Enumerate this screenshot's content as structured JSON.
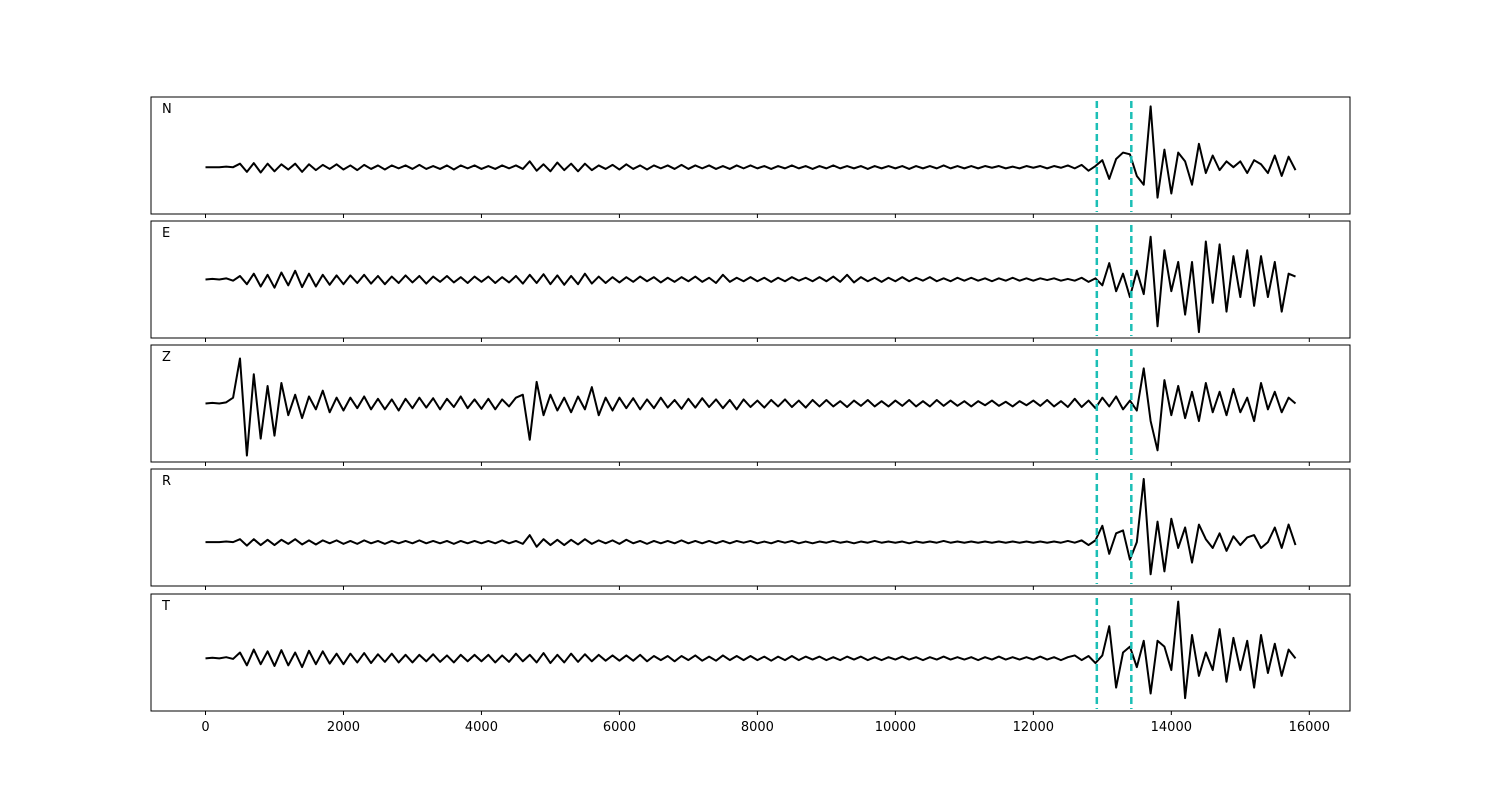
{
  "chart_data": {
    "type": "line",
    "layout": "stacked",
    "line_color": "#000000",
    "vlines": [
      12920,
      13420
    ],
    "vline_color": "#1cbfb6",
    "vline_style": "dashed",
    "xlim": [
      -790,
      16590
    ],
    "xticks": [
      0,
      2000,
      4000,
      6000,
      8000,
      10000,
      12000,
      14000,
      16000
    ],
    "x": [
      0,
      100,
      200,
      300,
      400,
      500,
      600,
      700,
      800,
      900,
      1000,
      1100,
      1200,
      1300,
      1400,
      1500,
      1600,
      1700,
      1800,
      1900,
      2000,
      2100,
      2200,
      2300,
      2400,
      2500,
      2600,
      2700,
      2800,
      2900,
      3000,
      3100,
      3200,
      3300,
      3400,
      3500,
      3600,
      3700,
      3800,
      3900,
      4000,
      4100,
      4200,
      4300,
      4400,
      4500,
      4600,
      4700,
      4800,
      4900,
      5000,
      5100,
      5200,
      5300,
      5400,
      5500,
      5600,
      5700,
      5800,
      5900,
      6000,
      6100,
      6200,
      6300,
      6400,
      6500,
      6600,
      6700,
      6800,
      6900,
      7000,
      7100,
      7200,
      7300,
      7400,
      7500,
      7600,
      7700,
      7800,
      7900,
      8000,
      8100,
      8200,
      8300,
      8400,
      8500,
      8600,
      8700,
      8800,
      8900,
      9000,
      9100,
      9200,
      9300,
      9400,
      9500,
      9600,
      9700,
      9800,
      9900,
      10000,
      10100,
      10200,
      10300,
      10400,
      10500,
      10600,
      10700,
      10800,
      10900,
      11000,
      11100,
      11200,
      11300,
      11400,
      11500,
      11600,
      11700,
      11800,
      11900,
      12000,
      12100,
      12200,
      12300,
      12400,
      12500,
      12600,
      12700,
      12800,
      12900,
      13000,
      13100,
      13200,
      13300,
      13400,
      13500,
      13600,
      13700,
      13800,
      13900,
      14000,
      14100,
      14200,
      14300,
      14400,
      14500,
      14600,
      14700,
      14800,
      14900,
      15000,
      15100,
      15200,
      15300,
      15400,
      15500,
      15600,
      15700,
      15800
    ],
    "series": [
      {
        "name": "N",
        "ylim": [
          -0.8,
          1.2
        ],
        "values": [
          0,
          0,
          0,
          0.01,
          0,
          0.06,
          -0.08,
          0.07,
          -0.09,
          0.06,
          -0.07,
          0.05,
          -0.04,
          0.06,
          -0.08,
          0.05,
          -0.05,
          0.04,
          -0.03,
          0.05,
          -0.04,
          0.03,
          -0.05,
          0.04,
          -0.03,
          0.03,
          -0.04,
          0.03,
          -0.02,
          0.03,
          -0.03,
          0.04,
          -0.03,
          0.02,
          -0.03,
          0.03,
          -0.04,
          0.03,
          -0.02,
          0.03,
          -0.03,
          0.02,
          -0.03,
          0.03,
          -0.02,
          0.03,
          -0.03,
          0.1,
          -0.06,
          0.05,
          -0.07,
          0.08,
          -0.05,
          0.06,
          -0.07,
          0.06,
          -0.05,
          0.03,
          -0.03,
          0.04,
          -0.04,
          0.05,
          -0.03,
          0.03,
          -0.04,
          0.03,
          -0.02,
          0.03,
          -0.03,
          0.04,
          -0.03,
          0.03,
          -0.02,
          0.03,
          -0.03,
          0.02,
          -0.03,
          0.03,
          -0.02,
          0.03,
          -0.02,
          0.02,
          -0.03,
          0.02,
          -0.02,
          0.03,
          -0.02,
          0.02,
          -0.03,
          0.02,
          -0.02,
          0.03,
          -0.02,
          0.02,
          -0.02,
          0.02,
          -0.03,
          0.02,
          -0.02,
          0.02,
          -0.02,
          0.02,
          -0.03,
          0.02,
          -0.02,
          0.02,
          -0.02,
          0.03,
          -0.02,
          0.02,
          -0.02,
          0.02,
          -0.02,
          0.02,
          -0.01,
          0.02,
          -0.02,
          0.01,
          -0.02,
          0.02,
          -0.01,
          0.02,
          -0.02,
          0.02,
          -0.01,
          0.03,
          -0.02,
          0.04,
          -0.06,
          0.02,
          0.12,
          -0.2,
          0.14,
          0.25,
          0.22,
          -0.15,
          -0.3,
          1.04,
          -0.52,
          0.3,
          -0.45,
          0.25,
          0.1,
          -0.3,
          0.4,
          -0.1,
          0.2,
          -0.05,
          0.1,
          0.0,
          0.1,
          -0.1,
          0.12,
          0.05,
          -0.1,
          0.2,
          -0.15,
          0.18,
          -0.05
        ]
      },
      {
        "name": "E",
        "ylim": [
          -1,
          1
        ],
        "values": [
          0,
          0.01,
          0,
          0.02,
          -0.02,
          0.06,
          -0.08,
          0.1,
          -0.12,
          0.08,
          -0.14,
          0.12,
          -0.1,
          0.15,
          -0.13,
          0.1,
          -0.12,
          0.08,
          -0.09,
          0.07,
          -0.08,
          0.07,
          -0.06,
          0.08,
          -0.07,
          0.06,
          -0.08,
          0.05,
          -0.06,
          0.07,
          -0.05,
          0.06,
          -0.07,
          0.05,
          -0.04,
          0.06,
          -0.05,
          0.04,
          -0.06,
          0.05,
          -0.04,
          0.05,
          -0.06,
          0.04,
          -0.05,
          0.06,
          -0.07,
          0.08,
          -0.06,
          0.09,
          -0.08,
          0.07,
          -0.09,
          0.06,
          -0.08,
          0.1,
          -0.07,
          0.05,
          -0.06,
          0.04,
          -0.05,
          0.04,
          -0.04,
          0.05,
          -0.03,
          0.04,
          -0.05,
          0.03,
          -0.04,
          0.04,
          -0.03,
          0.05,
          -0.04,
          0.03,
          -0.06,
          0.08,
          -0.04,
          0.03,
          -0.03,
          0.04,
          -0.03,
          0.03,
          -0.04,
          0.03,
          -0.03,
          0.04,
          -0.02,
          0.03,
          -0.03,
          0.04,
          -0.03,
          0.05,
          -0.04,
          0.08,
          -0.05,
          0.04,
          -0.03,
          0.03,
          -0.04,
          0.03,
          -0.03,
          0.04,
          -0.03,
          0.03,
          -0.02,
          0.04,
          -0.03,
          0.02,
          -0.03,
          0.03,
          -0.02,
          0.03,
          -0.02,
          0.02,
          -0.03,
          0.02,
          -0.02,
          0.03,
          -0.02,
          0.02,
          -0.02,
          0.02,
          -0.01,
          0.02,
          -0.02,
          0.01,
          -0.02,
          0.03,
          -0.04,
          0.02,
          -0.1,
          0.28,
          -0.2,
          0.1,
          -0.3,
          0.15,
          -0.25,
          0.73,
          -0.8,
          0.5,
          -0.2,
          0.3,
          -0.6,
          0.3,
          -0.9,
          0.65,
          -0.4,
          0.6,
          -0.55,
          0.4,
          -0.3,
          0.5,
          -0.45,
          0.4,
          -0.3,
          0.3,
          -0.55,
          0.1,
          0.05
        ]
      },
      {
        "name": "Z",
        "ylim": [
          -1,
          1
        ],
        "values": [
          0,
          0.01,
          0,
          0.02,
          0.1,
          0.77,
          -0.89,
          0.5,
          -0.6,
          0.3,
          -0.55,
          0.35,
          -0.2,
          0.15,
          -0.25,
          0.12,
          -0.1,
          0.22,
          -0.15,
          0.1,
          -0.12,
          0.1,
          -0.08,
          0.12,
          -0.1,
          0.08,
          -0.1,
          0.07,
          -0.12,
          0.08,
          -0.08,
          0.1,
          -0.07,
          0.09,
          -0.1,
          0.08,
          -0.06,
          0.12,
          -0.08,
          0.07,
          -0.09,
          0.08,
          -0.1,
          0.07,
          -0.05,
          0.1,
          0.15,
          -0.62,
          0.37,
          -0.2,
          0.15,
          -0.12,
          0.1,
          -0.15,
          0.12,
          -0.1,
          0.28,
          -0.2,
          0.1,
          -0.12,
          0.1,
          -0.08,
          0.09,
          -0.1,
          0.07,
          -0.08,
          0.1,
          -0.07,
          0.06,
          -0.09,
          0.08,
          -0.07,
          0.09,
          -0.06,
          0.07,
          -0.08,
          0.06,
          -0.1,
          0.07,
          -0.06,
          0.05,
          -0.07,
          0.06,
          -0.05,
          0.07,
          -0.06,
          0.05,
          -0.07,
          0.06,
          -0.05,
          0.06,
          -0.05,
          0.04,
          -0.06,
          0.05,
          -0.04,
          0.06,
          -0.05,
          0.04,
          -0.05,
          0.05,
          -0.04,
          0.06,
          -0.05,
          0.04,
          -0.05,
          0.06,
          -0.04,
          0.05,
          -0.04,
          0.04,
          -0.05,
          0.04,
          -0.03,
          0.05,
          -0.04,
          0.03,
          -0.05,
          0.04,
          -0.03,
          0.05,
          -0.04,
          0.06,
          -0.05,
          0.04,
          -0.06,
          0.08,
          -0.06,
          0.05,
          -0.08,
          0.1,
          -0.05,
          0.12,
          -0.1,
          0.05,
          -0.12,
          0.6,
          -0.3,
          -0.8,
          0.4,
          -0.2,
          0.3,
          -0.25,
          0.2,
          -0.3,
          0.35,
          -0.15,
          0.2,
          -0.2,
          0.25,
          -0.15,
          0.1,
          -0.3,
          0.35,
          -0.1,
          0.2,
          -0.15,
          0.1,
          0.0
        ]
      },
      {
        "name": "R",
        "ylim": [
          -0.75,
          1.25
        ],
        "values": [
          0,
          0,
          0,
          0.01,
          0,
          0.05,
          -0.06,
          0.05,
          -0.05,
          0.04,
          -0.05,
          0.04,
          -0.03,
          0.05,
          -0.04,
          0.03,
          -0.04,
          0.03,
          -0.02,
          0.03,
          -0.03,
          0.02,
          -0.03,
          0.03,
          -0.02,
          0.02,
          -0.03,
          0.02,
          -0.02,
          0.02,
          -0.02,
          0.03,
          -0.02,
          0.02,
          -0.02,
          0.02,
          -0.03,
          0.02,
          -0.02,
          0.02,
          -0.02,
          0.02,
          -0.02,
          0.03,
          -0.02,
          0.02,
          -0.03,
          0.12,
          -0.08,
          0.05,
          -0.05,
          0.04,
          -0.05,
          0.04,
          -0.04,
          0.05,
          -0.03,
          0.03,
          -0.02,
          0.03,
          -0.03,
          0.04,
          -0.02,
          0.02,
          -0.03,
          0.02,
          -0.02,
          0.02,
          -0.02,
          0.03,
          -0.02,
          0.02,
          -0.02,
          0.02,
          -0.02,
          0.02,
          -0.02,
          0.02,
          -0.01,
          0.02,
          -0.02,
          0.01,
          -0.02,
          0.02,
          -0.01,
          0.02,
          -0.02,
          0.01,
          -0.02,
          0.01,
          -0.01,
          0.02,
          -0.01,
          0.01,
          -0.02,
          0.01,
          -0.01,
          0.02,
          -0.01,
          0.01,
          -0.01,
          0.01,
          -0.02,
          0.01,
          -0.01,
          0.01,
          -0.01,
          0.02,
          -0.01,
          0.01,
          -0.01,
          0.01,
          -0.01,
          0.01,
          -0.01,
          0.01,
          -0.01,
          0.01,
          -0.01,
          0.01,
          -0.01,
          0.01,
          -0.01,
          0.01,
          -0.01,
          0.02,
          -0.01,
          0.03,
          -0.05,
          0.03,
          0.28,
          -0.2,
          0.15,
          0.2,
          -0.3,
          0.0,
          1.08,
          -0.55,
          0.35,
          -0.5,
          0.4,
          -0.1,
          0.25,
          -0.35,
          0.3,
          0.05,
          -0.1,
          0.15,
          -0.15,
          0.1,
          -0.05,
          0.08,
          0.12,
          -0.1,
          0.0,
          0.25,
          -0.1,
          0.3,
          -0.05
        ]
      },
      {
        "name": "T",
        "ylim": [
          -0.9,
          1.1
        ],
        "values": [
          0,
          0.01,
          0,
          0.02,
          -0.01,
          0.1,
          -0.12,
          0.15,
          -0.1,
          0.12,
          -0.13,
          0.14,
          -0.12,
          0.1,
          -0.15,
          0.13,
          -0.1,
          0.12,
          -0.09,
          0.08,
          -0.1,
          0.08,
          -0.07,
          0.09,
          -0.08,
          0.07,
          -0.06,
          0.08,
          -0.07,
          0.06,
          -0.07,
          0.06,
          -0.05,
          0.07,
          -0.06,
          0.05,
          -0.07,
          0.06,
          -0.05,
          0.06,
          -0.05,
          0.06,
          -0.07,
          0.05,
          -0.06,
          0.08,
          -0.05,
          0.06,
          -0.07,
          0.09,
          -0.08,
          0.06,
          -0.07,
          0.08,
          -0.06,
          0.07,
          -0.05,
          0.06,
          -0.04,
          0.05,
          -0.04,
          0.05,
          -0.04,
          0.06,
          -0.05,
          0.04,
          -0.03,
          0.04,
          -0.05,
          0.04,
          -0.03,
          0.05,
          -0.04,
          0.03,
          -0.04,
          0.05,
          -0.03,
          0.04,
          -0.03,
          0.04,
          -0.03,
          0.03,
          -0.04,
          0.03,
          -0.03,
          0.04,
          -0.03,
          0.03,
          -0.02,
          0.03,
          -0.03,
          0.02,
          -0.03,
          0.03,
          -0.02,
          0.03,
          -0.03,
          0.02,
          -0.03,
          0.02,
          -0.02,
          0.03,
          -0.02,
          0.02,
          -0.03,
          0.02,
          -0.02,
          0.03,
          -0.02,
          0.02,
          -0.02,
          0.02,
          -0.03,
          0.02,
          -0.02,
          0.03,
          -0.02,
          0.02,
          -0.02,
          0.02,
          -0.02,
          0.03,
          -0.02,
          0.02,
          -0.03,
          0.02,
          0.05,
          -0.03,
          0.04,
          -0.08,
          0.05,
          0.55,
          -0.5,
          0.1,
          0.2,
          -0.15,
          0.3,
          -0.6,
          0.3,
          0.2,
          -0.2,
          0.97,
          -0.68,
          0.4,
          -0.3,
          0.1,
          -0.2,
          0.5,
          -0.4,
          0.35,
          -0.2,
          0.3,
          -0.5,
          0.4,
          -0.25,
          0.25,
          -0.3,
          0.15,
          0.0
        ]
      }
    ]
  }
}
